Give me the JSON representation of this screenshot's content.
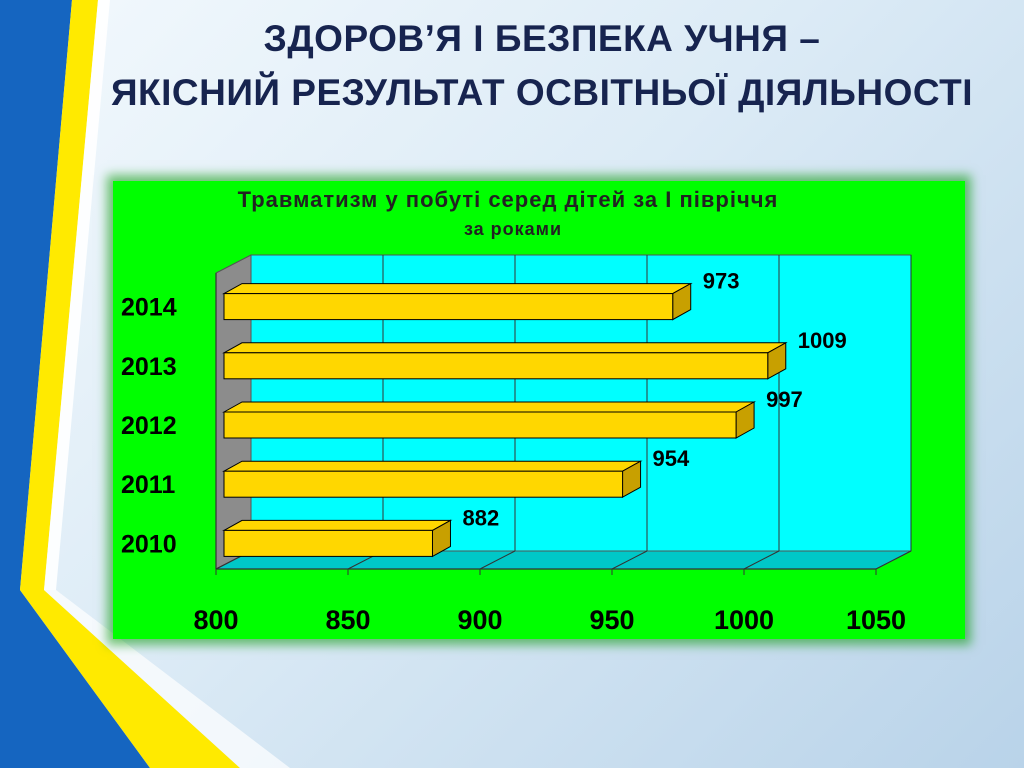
{
  "slide": {
    "title_line_1": "ЗДОРОВ’Я  І БЕЗПЕКА  УЧНЯ –",
    "title_line_2": "ЯКІСНИЙ  РЕЗУЛЬТАТ ОСВІТНЬОЇ  ДІЯЛЬНОСТІ"
  },
  "colors": {
    "chart_background": "#00ff00",
    "plot_wall": "#00ffff",
    "bar_fill": "#ffd700",
    "bar_side": "#c8a000",
    "title_text": "#17244f",
    "stripe_blue": "#1565c0",
    "stripe_yellow": "#ffea00"
  },
  "chart_data": {
    "type": "bar",
    "orientation": "horizontal",
    "title": "Травматизм у побуті серед дітей за І півріччя",
    "subtitle": "за роками",
    "categories": [
      "2014",
      "2013",
      "2012",
      "2011",
      "2010"
    ],
    "values": [
      973,
      1009,
      997,
      954,
      882
    ],
    "data_labels": [
      "973",
      "1009",
      "997",
      "954",
      "882"
    ],
    "x_ticks": [
      800,
      850,
      900,
      950,
      1000,
      1050
    ],
    "xlim": [
      800,
      1050
    ],
    "grid": true,
    "style": "3d"
  }
}
